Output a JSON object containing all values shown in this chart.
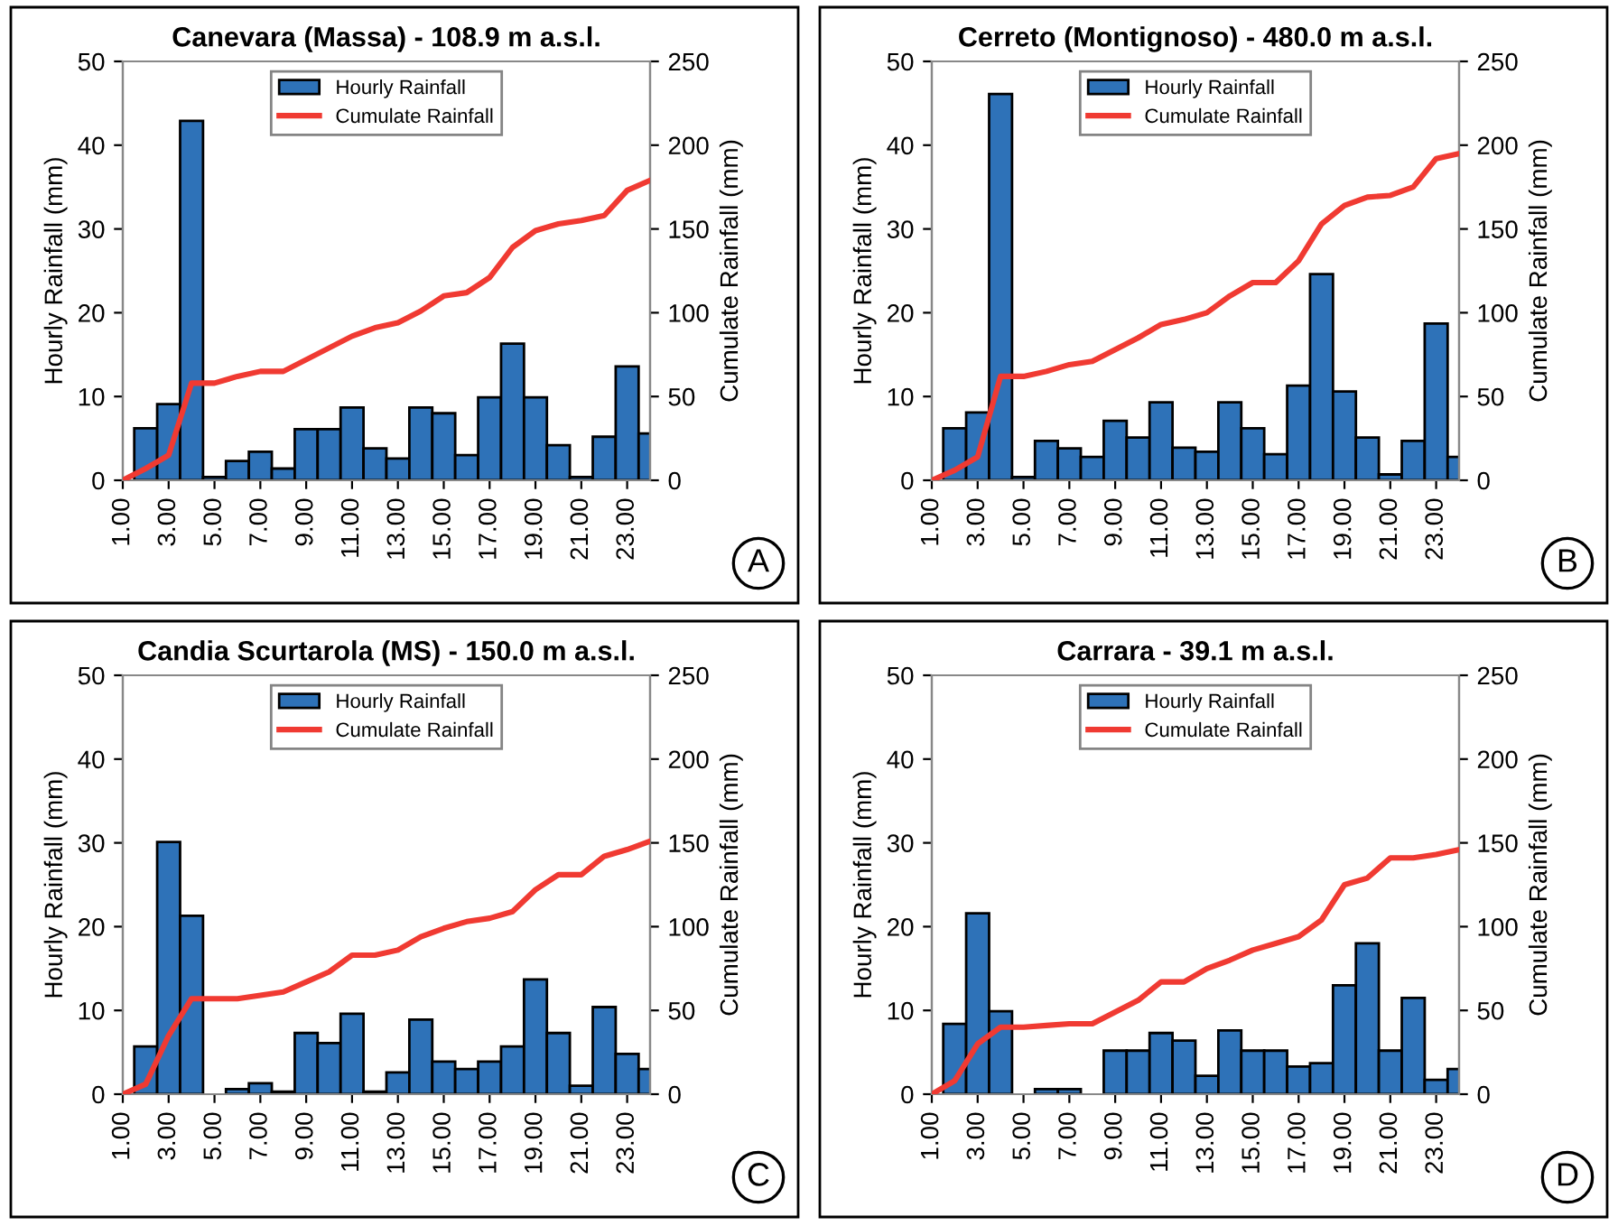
{
  "chart_data": [
    {
      "type": "bar",
      "title": "Canevara (Massa) - 108.9 m a.s.l.",
      "ylabel": "Hourly Rainfall (mm)",
      "y2label": "Cumulate Rainfall (mm)",
      "xlim": [
        1,
        24
      ],
      "xticks": [
        {
          "value": 1,
          "label": "1.00"
        },
        {
          "value": 3,
          "label": "3.00"
        },
        {
          "value": 5,
          "label": "5.00"
        },
        {
          "value": 7,
          "label": "7.00"
        },
        {
          "value": 9,
          "label": "9.00"
        },
        {
          "value": 11,
          "label": "11.00"
        },
        {
          "value": 13,
          "label": "13.00"
        },
        {
          "value": 15,
          "label": "15.00"
        },
        {
          "value": 17,
          "label": "17.00"
        },
        {
          "value": 19,
          "label": "19.00"
        },
        {
          "value": 21,
          "label": "21.00"
        },
        {
          "value": 23,
          "label": "23.00"
        }
      ],
      "ylim": [
        0,
        50
      ],
      "yticks": [
        0,
        10,
        20,
        30,
        40,
        50
      ],
      "y2lim": [
        0,
        250
      ],
      "y2ticks": [
        0,
        50,
        100,
        150,
        200,
        250
      ],
      "legend": "top",
      "annotations": [
        "A"
      ],
      "series": [
        {
          "name": "Hourly Rainfall",
          "type": "bar",
          "color": "#2e72b8",
          "x": [
            2,
            3,
            4,
            5,
            6,
            7,
            8,
            9,
            10,
            11,
            12,
            13,
            14,
            15,
            16,
            17,
            18,
            19,
            20,
            21,
            22,
            23,
            24
          ],
          "values": [
            6.2,
            9.1,
            42.9,
            0.4,
            2.3,
            3.4,
            1.4,
            6.1,
            6.1,
            8.7,
            3.8,
            2.6,
            8.7,
            8.0,
            3.0,
            9.9,
            16.3,
            9.9,
            4.2,
            0.4,
            5.2,
            13.6,
            5.6
          ]
        },
        {
          "name": "Cumulate Rainfall",
          "type": "line",
          "axis": "y2",
          "color": "#f03a32",
          "x": [
            1,
            2,
            3,
            4,
            5,
            6,
            7,
            8,
            9,
            10,
            11,
            12,
            13,
            14,
            15,
            16,
            17,
            18,
            19,
            20,
            21,
            22,
            23,
            24
          ],
          "values": [
            0,
            7,
            15,
            58,
            58,
            62,
            65,
            65,
            72,
            79,
            86,
            91,
            94,
            101,
            110,
            112,
            121,
            139,
            149,
            153,
            155,
            158,
            173,
            179
          ]
        }
      ]
    },
    {
      "type": "bar",
      "title": "Cerreto (Montignoso) - 480.0 m a.s.l.",
      "ylabel": "Hourly Rainfall (mm)",
      "y2label": "Cumulate Rainfall (mm)",
      "xlim": [
        1,
        24
      ],
      "xticks": [
        {
          "value": 1,
          "label": "1.00"
        },
        {
          "value": 3,
          "label": "3.00"
        },
        {
          "value": 5,
          "label": "5.00"
        },
        {
          "value": 7,
          "label": "7.00"
        },
        {
          "value": 9,
          "label": "9.00"
        },
        {
          "value": 11,
          "label": "11.00"
        },
        {
          "value": 13,
          "label": "13.00"
        },
        {
          "value": 15,
          "label": "15.00"
        },
        {
          "value": 17,
          "label": "17.00"
        },
        {
          "value": 19,
          "label": "19.00"
        },
        {
          "value": 21,
          "label": "21.00"
        },
        {
          "value": 23,
          "label": "23.00"
        }
      ],
      "ylim": [
        0,
        50
      ],
      "yticks": [
        0,
        10,
        20,
        30,
        40,
        50
      ],
      "y2lim": [
        0,
        250
      ],
      "y2ticks": [
        0,
        50,
        100,
        150,
        200,
        250
      ],
      "legend": "top",
      "annotations": [
        "B"
      ],
      "series": [
        {
          "name": "Hourly Rainfall",
          "type": "bar",
          "color": "#2e72b8",
          "x": [
            2,
            3,
            4,
            5,
            6,
            7,
            8,
            9,
            10,
            11,
            12,
            13,
            14,
            15,
            16,
            17,
            18,
            19,
            20,
            21,
            22,
            23,
            24
          ],
          "values": [
            6.2,
            8.1,
            46.1,
            0.4,
            4.7,
            3.8,
            2.8,
            7.1,
            5.1,
            9.3,
            3.9,
            3.4,
            9.3,
            6.2,
            3.1,
            11.3,
            24.6,
            10.6,
            5.1,
            0.7,
            4.7,
            18.7,
            2.8
          ]
        },
        {
          "name": "Cumulate Rainfall",
          "type": "line",
          "axis": "y2",
          "color": "#f03a32",
          "x": [
            1,
            2,
            3,
            4,
            5,
            6,
            7,
            8,
            9,
            10,
            11,
            12,
            13,
            14,
            15,
            16,
            17,
            18,
            19,
            20,
            21,
            22,
            23,
            24
          ],
          "values": [
            0,
            6,
            14,
            62,
            62,
            65,
            69,
            71,
            78,
            85,
            93,
            96,
            100,
            110,
            118,
            118,
            131,
            153,
            164,
            169,
            170,
            175,
            192,
            195
          ]
        }
      ]
    },
    {
      "type": "bar",
      "title": "Candia Scurtarola (MS) - 150.0 m a.s.l.",
      "ylabel": "Hourly Rainfall (mm)",
      "y2label": "Cumulate Rainfall (mm)",
      "xlim": [
        1,
        24
      ],
      "xticks": [
        {
          "value": 1,
          "label": "1.00"
        },
        {
          "value": 3,
          "label": "3.00"
        },
        {
          "value": 5,
          "label": "5.00"
        },
        {
          "value": 7,
          "label": "7.00"
        },
        {
          "value": 9,
          "label": "9.00"
        },
        {
          "value": 11,
          "label": "11.00"
        },
        {
          "value": 13,
          "label": "13.00"
        },
        {
          "value": 15,
          "label": "15.00"
        },
        {
          "value": 17,
          "label": "17.00"
        },
        {
          "value": 19,
          "label": "19.00"
        },
        {
          "value": 21,
          "label": "21.00"
        },
        {
          "value": 23,
          "label": "23.00"
        }
      ],
      "ylim": [
        0,
        50
      ],
      "yticks": [
        0,
        10,
        20,
        30,
        40,
        50
      ],
      "y2lim": [
        0,
        250
      ],
      "y2ticks": [
        0,
        50,
        100,
        150,
        200,
        250
      ],
      "legend": "top",
      "annotations": [
        "C"
      ],
      "series": [
        {
          "name": "Hourly Rainfall",
          "type": "bar",
          "color": "#2e72b8",
          "x": [
            2,
            3,
            4,
            5,
            6,
            7,
            8,
            9,
            10,
            11,
            12,
            13,
            14,
            15,
            16,
            17,
            18,
            19,
            20,
            21,
            22,
            23,
            24
          ],
          "values": [
            5.7,
            30.1,
            21.3,
            null,
            0.6,
            1.3,
            0.3,
            7.3,
            6.1,
            9.6,
            0.3,
            2.6,
            8.9,
            3.9,
            3.0,
            3.9,
            5.7,
            13.7,
            7.3,
            1.0,
            10.4,
            4.8,
            3.0
          ]
        },
        {
          "name": "Cumulate Rainfall",
          "type": "line",
          "axis": "y2",
          "color": "#f03a32",
          "x": [
            1,
            2,
            3,
            4,
            5,
            6,
            7,
            8,
            9,
            10,
            11,
            12,
            13,
            14,
            15,
            16,
            17,
            18,
            19,
            20,
            21,
            22,
            23,
            24
          ],
          "values": [
            0,
            6,
            35,
            57,
            57,
            57,
            59,
            61,
            67,
            73,
            83,
            83,
            86,
            94,
            99,
            103,
            105,
            109,
            122,
            131,
            131,
            142,
            146,
            151
          ]
        }
      ]
    },
    {
      "type": "bar",
      "title": "Carrara - 39.1 m a.s.l.",
      "ylabel": "Hourly Rainfall (mm)",
      "y2label": "Cumulate Rainfall (mm)",
      "xlim": [
        1,
        24
      ],
      "xticks": [
        {
          "value": 1,
          "label": "1.00"
        },
        {
          "value": 3,
          "label": "3.00"
        },
        {
          "value": 5,
          "label": "5.00"
        },
        {
          "value": 7,
          "label": "7.00"
        },
        {
          "value": 9,
          "label": "9.00"
        },
        {
          "value": 11,
          "label": "11.00"
        },
        {
          "value": 13,
          "label": "13.00"
        },
        {
          "value": 15,
          "label": "15.00"
        },
        {
          "value": 17,
          "label": "17.00"
        },
        {
          "value": 19,
          "label": "19.00"
        },
        {
          "value": 21,
          "label": "21.00"
        },
        {
          "value": 23,
          "label": "23.00"
        }
      ],
      "ylim": [
        0,
        50
      ],
      "yticks": [
        0,
        10,
        20,
        30,
        40,
        50
      ],
      "y2lim": [
        0,
        250
      ],
      "y2ticks": [
        0,
        50,
        100,
        150,
        200,
        250
      ],
      "legend": "top",
      "annotations": [
        "D"
      ],
      "series": [
        {
          "name": "Hourly Rainfall",
          "type": "bar",
          "color": "#2e72b8",
          "x": [
            2,
            3,
            4,
            5,
            6,
            7,
            8,
            9,
            10,
            11,
            12,
            13,
            14,
            15,
            16,
            17,
            18,
            19,
            20,
            21,
            22,
            23,
            24
          ],
          "values": [
            8.4,
            21.6,
            9.9,
            null,
            0.6,
            0.6,
            null,
            5.2,
            5.2,
            7.3,
            6.4,
            2.2,
            7.6,
            5.2,
            5.2,
            3.3,
            3.7,
            13.0,
            18.0,
            5.2,
            11.5,
            1.7,
            3.0
          ]
        },
        {
          "name": "Cumulate Rainfall",
          "type": "line",
          "axis": "y2",
          "color": "#f03a32",
          "x": [
            1,
            2,
            3,
            4,
            5,
            6,
            7,
            8,
            9,
            10,
            11,
            12,
            13,
            14,
            15,
            16,
            17,
            18,
            19,
            20,
            21,
            22,
            23,
            24
          ],
          "values": [
            0,
            8,
            30,
            40,
            40,
            41,
            42,
            42,
            49,
            56,
            67,
            67,
            75,
            80,
            86,
            90,
            94,
            104,
            125,
            129,
            141,
            141,
            143,
            146
          ]
        }
      ]
    }
  ]
}
